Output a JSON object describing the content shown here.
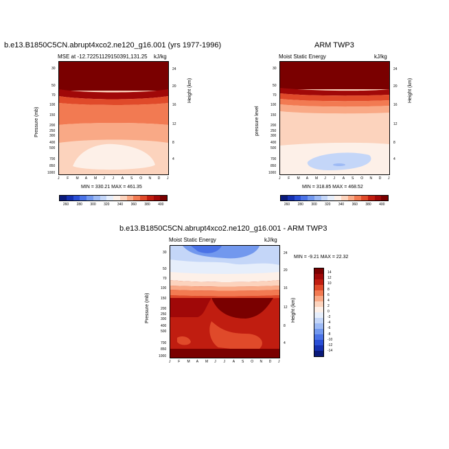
{
  "chart_data": [
    {
      "type": "contour",
      "title": "b.e13.B1850C5CN.abrupt4xco2.ne120_g16.001 (yrs 1977-1996)",
      "subtitle_left": "MSE at -12.72251129150391,131.25",
      "subtitle_right": "kJ/kg",
      "ylabel": "Pressure (mb)",
      "ylabel_right": "Height (km)",
      "stats": "MIN = 330.21 MAX = 461.35",
      "min": 330.21,
      "max": 461.35,
      "x_ticks": [
        "J",
        "F",
        "M",
        "A",
        "M",
        "J",
        "J",
        "A",
        "S",
        "O",
        "N",
        "D",
        "J"
      ],
      "y_ticks": [
        "30",
        "50",
        "70",
        "100",
        "150",
        "200",
        "250",
        "300",
        "400",
        "500",
        "700",
        "850",
        "1000"
      ],
      "y_ticks_right": [
        "24",
        "20",
        "16",
        "12",
        "8",
        "4"
      ],
      "levels": [
        260,
        270,
        280,
        290,
        300,
        310,
        320,
        330,
        340,
        350,
        360,
        370,
        380,
        390,
        400
      ],
      "colorbar_labels": [
        "260",
        "280",
        "300",
        "320",
        "340",
        "360",
        "380",
        "400"
      ]
    },
    {
      "type": "contour",
      "title": "ARM TWP3",
      "subtitle_left": "Moist Static Energy",
      "subtitle_right": "kJ/kg",
      "ylabel": "pressure level",
      "ylabel_right": "Height (km)",
      "stats": "MIN = 318.85 MAX = 468.52",
      "min": 318.85,
      "max": 468.52,
      "x_ticks": [
        "J",
        "F",
        "M",
        "A",
        "M",
        "J",
        "J",
        "A",
        "S",
        "O",
        "N",
        "D",
        "J"
      ],
      "y_ticks": [
        "30",
        "50",
        "70",
        "100",
        "150",
        "200",
        "250",
        "300",
        "400",
        "500",
        "700",
        "850",
        "1000"
      ],
      "y_ticks_right": [
        "24",
        "20",
        "16",
        "12",
        "8",
        "4"
      ],
      "levels": [
        260,
        270,
        280,
        290,
        300,
        310,
        320,
        330,
        340,
        350,
        360,
        370,
        380,
        390,
        400
      ],
      "colorbar_labels": [
        "260",
        "280",
        "300",
        "320",
        "340",
        "360",
        "380",
        "400"
      ]
    },
    {
      "type": "contour",
      "title": "b.e13.B1850C5CN.abrupt4xco2.ne120_g16.001 - ARM TWP3",
      "subtitle_left": "Moist Static Energy",
      "subtitle_right": "kJ/kg",
      "ylabel": "Pressure (mb)",
      "ylabel_right": "Height (km)",
      "stats": "MIN = -9.21 MAX = 22.32",
      "min": -9.21,
      "max": 22.32,
      "x_ticks": [
        "J",
        "F",
        "M",
        "A",
        "M",
        "J",
        "J",
        "A",
        "S",
        "O",
        "N",
        "D",
        "J"
      ],
      "y_ticks": [
        "30",
        "50",
        "70",
        "100",
        "150",
        "200",
        "250",
        "300",
        "400",
        "500",
        "700",
        "850",
        "1000"
      ],
      "y_ticks_right": [
        "24",
        "20",
        "16",
        "12",
        "8",
        "4"
      ],
      "levels": [
        -14,
        -12,
        -10,
        -8,
        -6,
        -4,
        -2,
        0,
        2,
        4,
        6,
        8,
        10,
        12,
        14
      ],
      "colorbar_labels": [
        "14",
        "12",
        "10",
        "8",
        "6",
        "4",
        "2",
        "0",
        "-2",
        "-4",
        "-6",
        "-8",
        "-10",
        "-12",
        "-14"
      ]
    }
  ],
  "colors": {
    "abs_scale": [
      "#0a1a7a",
      "#1530b0",
      "#2a4fd6",
      "#4a72e6",
      "#7298ee",
      "#9dbaf5",
      "#c4d6f8",
      "#e6eefb",
      "#fdf0e8",
      "#fcd3bd",
      "#f9a986",
      "#f27a52",
      "#e04a2a",
      "#c01d10",
      "#a00808",
      "#7a0000"
    ],
    "diff_scale": [
      "#7a0000",
      "#a00808",
      "#c01d10",
      "#e04a2a",
      "#f27a52",
      "#f9a986",
      "#fcd3bd",
      "#fdf0e8",
      "#e6eefb",
      "#c4d6f8",
      "#9dbaf5",
      "#7298ee",
      "#4a72e6",
      "#2a4fd6",
      "#1530b0",
      "#0a1a7a"
    ]
  }
}
